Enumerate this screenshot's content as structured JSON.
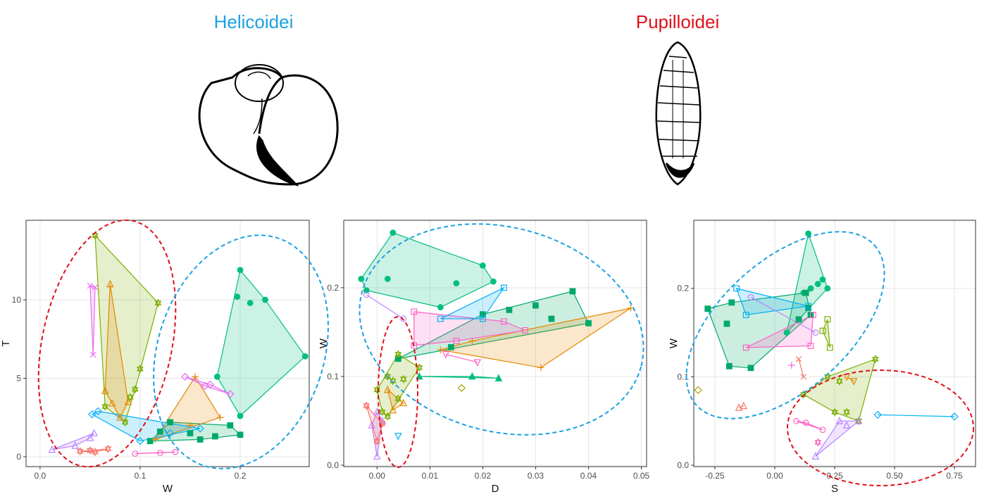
{
  "groups": [
    {
      "title": "Helicoidei",
      "color": "#1ba1e2"
    },
    {
      "title": "Pupilloidei",
      "color": "#e0101a"
    }
  ],
  "chart_data": [
    {
      "type": "scatter",
      "xlabel": "W",
      "ylabel": "T",
      "xlim": [
        -0.014,
        0.269
      ],
      "ylim": [
        -0.63,
        15.07
      ],
      "xticks": [
        {
          "value": 0,
          "label": "0.0"
        },
        0.1,
        0.2
      ],
      "yticks": [
        0,
        5,
        10
      ],
      "grid": true,
      "series": [
        {
          "color": "#00BF7D",
          "marker": "circle-filled",
          "x": [
            0.177,
            0.2,
            0.197,
            0.21,
            0.225,
            0.265,
            0.2
          ],
          "values": [
            5.1,
            11.9,
            10.2,
            9.8,
            10.0,
            6.4,
            2.6
          ]
        },
        {
          "color": "#7CAE00",
          "marker": "star",
          "x": [
            0.055,
            0.118,
            0.1,
            0.09,
            0.065,
            0.085,
            0.095
          ],
          "values": [
            14.1,
            9.8,
            5.6,
            3.8,
            3.2,
            2.2,
            4.3
          ]
        },
        {
          "color": "#E76BF3",
          "marker": "cross",
          "x": [
            0.05,
            0.055,
            0.053
          ],
          "values": [
            10.9,
            10.8,
            6.5
          ]
        },
        {
          "color": "#E58700",
          "marker": "triangle",
          "x": [
            0.07,
            0.065,
            0.072,
            0.088,
            0.08
          ],
          "values": [
            11.0,
            4.2,
            3.4,
            3.5,
            2.5
          ]
        },
        {
          "color": "#00A86B",
          "marker": "square-filled",
          "x": [
            0.11,
            0.12,
            0.13,
            0.16,
            0.19,
            0.2,
            0.15,
            0.175
          ],
          "values": [
            1.0,
            1.6,
            2.2,
            1.1,
            2.0,
            1.4,
            1.5,
            1.3
          ]
        },
        {
          "color": "#E58700",
          "marker": "plus",
          "x": [
            0.115,
            0.155,
            0.18,
            0.15
          ],
          "values": [
            1.1,
            5.1,
            2.5,
            2.0
          ]
        },
        {
          "color": "#E76BF3",
          "marker": "diamond",
          "x": [
            0.145,
            0.17,
            0.19,
            0.165
          ],
          "values": [
            5.1,
            4.6,
            4.0,
            4.5
          ]
        },
        {
          "color": "#F8766D",
          "marker": "star",
          "x": [
            0.04,
            0.05,
            0.068,
            0.055
          ],
          "values": [
            0.35,
            0.4,
            0.5,
            0.3
          ]
        },
        {
          "color": "#B983FF",
          "marker": "triangle",
          "x": [
            0.012,
            0.035,
            0.05,
            0.054
          ],
          "values": [
            0.45,
            0.7,
            1.2,
            1.5
          ]
        },
        {
          "color": "#00B0F6",
          "marker": "diamond",
          "x": [
            0.052,
            0.058,
            0.1,
            0.13,
            0.16
          ],
          "values": [
            2.7,
            2.9,
            1.0,
            1.5,
            1.8
          ]
        },
        {
          "color": "#FF61C3",
          "marker": "circle",
          "x": [
            0.12,
            0.135,
            0.095
          ],
          "values": [
            0.25,
            0.3,
            0.2
          ]
        }
      ]
    },
    {
      "type": "scatter",
      "xlabel": "D",
      "ylabel": "W",
      "xlim": [
        -0.0063,
        0.051
      ],
      "ylim": [
        -0.0016,
        0.276
      ],
      "xticks": [
        {
          "value": 0,
          "label": "0.00"
        },
        0.01,
        0.02,
        0.03,
        0.04,
        0.05
      ],
      "yticks": [
        {
          "value": 0,
          "label": "0.0"
        },
        0.1,
        0.2
      ],
      "grid": true,
      "series": [
        {
          "color": "#00BF7D",
          "marker": "circle-filled",
          "x": [
            -0.003,
            0.003,
            0.02,
            0.022,
            0.012,
            -0.002,
            0.002,
            0.015
          ],
          "values": [
            0.21,
            0.262,
            0.225,
            0.207,
            0.178,
            0.197,
            0.21,
            0.205
          ]
        },
        {
          "color": "#00A86B",
          "marker": "square-filled",
          "x": [
            0.004,
            0.014,
            0.02,
            0.037,
            0.04,
            0.03,
            0.025,
            0.033
          ],
          "values": [
            0.12,
            0.133,
            0.17,
            0.196,
            0.16,
            0.18,
            0.175,
            0.165
          ]
        },
        {
          "color": "#E58700",
          "marker": "plus",
          "x": [
            0.012,
            0.048,
            0.031,
            0.018
          ],
          "values": [
            0.13,
            0.177,
            0.11,
            0.14
          ]
        },
        {
          "color": "#FF61C3",
          "marker": "square",
          "x": [
            0.007,
            0.007,
            0.028,
            0.024,
            0.015
          ],
          "values": [
            0.173,
            0.135,
            0.152,
            0.162,
            0.14
          ]
        },
        {
          "color": "#00BF7D",
          "marker": "triangle-filled",
          "x": [
            0.008,
            0.023,
            0.018
          ],
          "values": [
            0.1,
            0.098,
            0.1
          ]
        },
        {
          "color": "#00B0F6",
          "marker": "square",
          "x": [
            0.012,
            0.024,
            0.02
          ],
          "values": [
            0.165,
            0.2,
            0.165
          ]
        },
        {
          "color": "#B983FF",
          "marker": "circle",
          "x": [
            -0.002,
            0.005
          ],
          "values": [
            0.192,
            0.165
          ]
        },
        {
          "color": "#7CAE00",
          "marker": "star",
          "x": [
            0.0,
            0.002,
            0.005,
            0.004,
            0.001,
            0.002,
            0.003,
            0.008,
            0.004
          ],
          "values": [
            0.085,
            0.1,
            0.097,
            0.075,
            0.06,
            0.055,
            0.095,
            0.11,
            0.125
          ]
        },
        {
          "color": "#B983FF",
          "marker": "triangle",
          "x": [
            0.0,
            0.001,
            -0.001,
            0.0
          ],
          "values": [
            0.01,
            0.05,
            0.045,
            0.06
          ]
        },
        {
          "color": "#F8766D",
          "marker": "star",
          "x": [
            0.0,
            -0.002,
            0.001
          ],
          "values": [
            0.027,
            0.067,
            0.047
          ]
        },
        {
          "color": "#E58700",
          "marker": "triangle",
          "x": [
            0.002,
            0.005,
            0.003
          ],
          "values": [
            0.085,
            0.07,
            0.062
          ]
        },
        {
          "color": "#A3A500",
          "marker": "diamond",
          "x": [
            0.016
          ],
          "values": [
            0.087
          ]
        },
        {
          "color": "#00B0F6",
          "marker": "down-triangle",
          "x": [
            0.004
          ],
          "values": [
            0.033
          ]
        },
        {
          "color": "#FF61C3",
          "marker": "down-triangle",
          "x": [
            0.019,
            0.013
          ],
          "values": [
            0.116,
            0.125
          ]
        }
      ]
    },
    {
      "type": "scatter",
      "xlabel": "S",
      "ylabel": "W",
      "xlim": [
        -0.338,
        0.838
      ],
      "ylim": [
        -0.0016,
        0.277
      ],
      "xticks": [
        -0.25,
        {
          "value": 0,
          "label": "0.00"
        },
        0.25,
        {
          "value": 0.5,
          "label": "0.50"
        },
        0.75
      ],
      "yticks": [
        {
          "value": 0,
          "label": "0.0"
        },
        0.1,
        0.2
      ],
      "grid": true,
      "series": [
        {
          "color": "#00BF7D",
          "marker": "circle-filled",
          "x": [
            0.14,
            0.2,
            0.22,
            0.15,
            0.05,
            0.18,
            0.12
          ],
          "values": [
            0.262,
            0.21,
            0.2,
            0.2,
            0.15,
            0.205,
            0.195
          ]
        },
        {
          "color": "#00A86B",
          "marker": "square-filled",
          "x": [
            -0.28,
            -0.18,
            -0.1,
            -0.19,
            0.14,
            0.13,
            0.15,
            -0.2,
            0.1
          ],
          "values": [
            0.177,
            0.184,
            0.11,
            0.112,
            0.178,
            0.195,
            0.17,
            0.16,
            0.165
          ]
        },
        {
          "color": "#7CAE00",
          "marker": "square",
          "x": [
            0.22,
            0.23,
            0.2
          ],
          "values": [
            0.165,
            0.133,
            0.152
          ]
        },
        {
          "color": "#FF61C3",
          "marker": "square",
          "x": [
            -0.12,
            0.16,
            0.15
          ],
          "values": [
            0.133,
            0.17,
            0.135
          ]
        },
        {
          "color": "#00B0F6",
          "marker": "square",
          "x": [
            -0.16,
            -0.12,
            0.14
          ],
          "values": [
            0.2,
            0.17,
            0.18
          ]
        },
        {
          "color": "#B983FF",
          "marker": "circle",
          "x": [
            -0.1,
            0.17
          ],
          "values": [
            0.19,
            0.15
          ]
        },
        {
          "color": "#7CAE00",
          "marker": "star",
          "x": [
            0.12,
            0.42,
            0.3,
            0.25,
            0.22,
            0.27,
            0.35
          ],
          "values": [
            0.08,
            0.12,
            0.06,
            0.06,
            0.1,
            0.095,
            0.05
          ]
        },
        {
          "color": "#F8766D",
          "marker": "triangle",
          "x": [
            -0.15,
            -0.13
          ],
          "values": [
            0.065,
            0.067
          ]
        },
        {
          "color": "#E58700",
          "marker": "down-triangle",
          "x": [
            0.3,
            0.33
          ],
          "values": [
            0.1,
            0.095
          ]
        },
        {
          "color": "#B983FF",
          "marker": "triangle",
          "x": [
            0.17,
            0.3,
            0.35,
            0.27
          ],
          "values": [
            0.01,
            0.045,
            0.05,
            0.05
          ]
        },
        {
          "color": "#00B0F6",
          "marker": "diamond",
          "x": [
            0.43,
            0.75
          ],
          "values": [
            0.057,
            0.055
          ]
        },
        {
          "color": "#FF61C3",
          "marker": "circle",
          "x": [
            0.09,
            0.13,
            0.2
          ],
          "values": [
            0.05,
            0.048,
            0.04
          ]
        },
        {
          "color": "#FF61C3",
          "marker": "star",
          "x": [
            0.18
          ],
          "values": [
            0.026
          ]
        },
        {
          "color": "#A3A500",
          "marker": "diamond",
          "x": [
            -0.32
          ],
          "values": [
            0.085
          ]
        },
        {
          "color": "#E76BF3",
          "marker": "plus",
          "x": [
            0.07
          ],
          "values": [
            0.113
          ]
        },
        {
          "color": "#F8766D",
          "marker": "cross",
          "x": [
            0.12,
            0.1
          ],
          "values": [
            0.1,
            0.12
          ]
        }
      ]
    }
  ]
}
